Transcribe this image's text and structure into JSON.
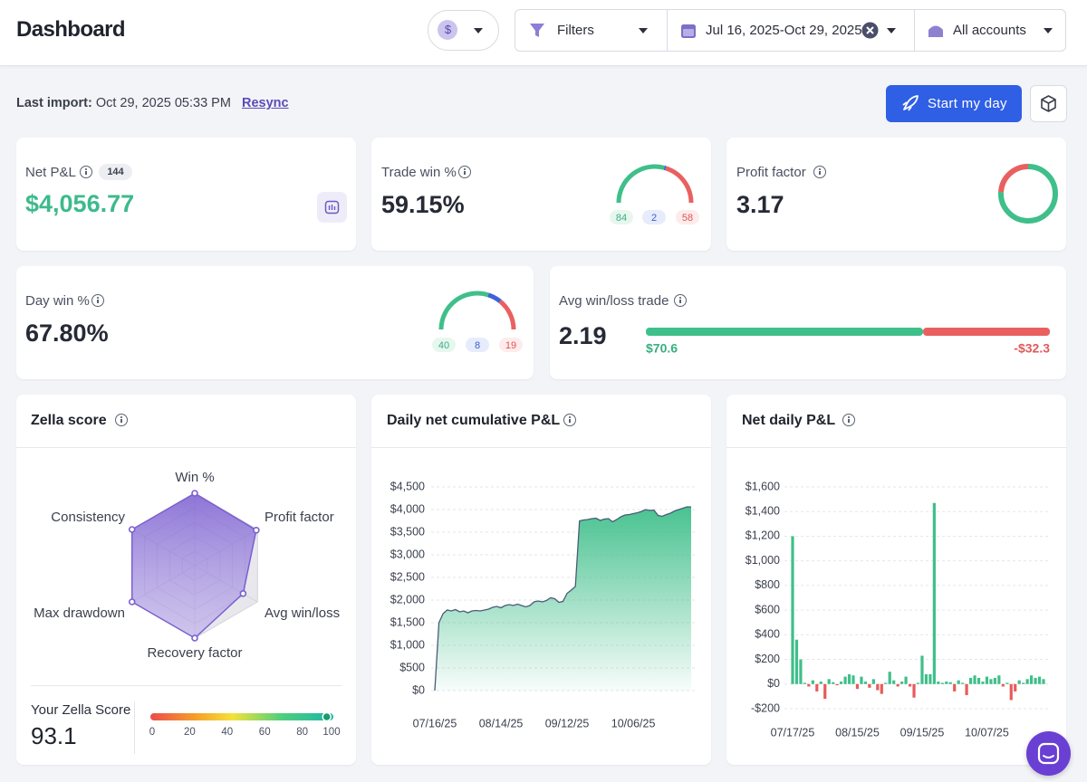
{
  "header": {
    "title": "Dashboard",
    "currency": "$",
    "filters": "Filters",
    "date_range": "Jul 16, 2025-Oct 29, 2025",
    "accounts": "All accounts"
  },
  "import": {
    "label": "Last import:",
    "time": "Oct 29, 2025 05:33 PM",
    "resync": "Resync",
    "start_button": "Start my day"
  },
  "cards": {
    "net_pnl": {
      "label": "Net P&L",
      "trade_count": 144,
      "value": "$4,056.77"
    },
    "trade_win": {
      "label": "Trade win %",
      "value": "59.15%",
      "wins": 84,
      "breakeven": 2,
      "losses": 58
    },
    "profit_factor": {
      "label": "Profit factor",
      "value": 3.17
    },
    "day_win": {
      "label": "Day win %",
      "value": "67.80%",
      "wins": 40,
      "breakeven": 8,
      "losses": 19
    },
    "avg_win_loss": {
      "label": "Avg win/loss trade",
      "value": 2.19,
      "avg_win": {
        "value": 70.6,
        "label": "$70.6"
      },
      "avg_loss": {
        "value": -32.3,
        "label": "-$32.3"
      }
    }
  },
  "zella_score": {
    "label": "Your Zella Score",
    "value": 93.1,
    "ticks": [
      0,
      20,
      40,
      60,
      80,
      100
    ]
  },
  "chart_data": [
    {
      "type": "radar",
      "title": "Zella score",
      "categories": [
        "Win %",
        "Profit factor",
        "Avg win/loss",
        "Recovery factor",
        "Max drawdown",
        "Consistency"
      ],
      "values": [
        100,
        98,
        77,
        100,
        100,
        100
      ],
      "rlim": [
        0,
        100
      ],
      "rticks": [
        20,
        40,
        60,
        80,
        100
      ],
      "color": "#7b5fd1"
    },
    {
      "type": "area",
      "title": "Daily net cumulative P&L",
      "categories": [
        "07/16/25",
        null,
        null,
        null,
        null,
        null,
        null,
        null,
        null,
        null,
        null,
        null,
        null,
        null,
        null,
        null,
        "08/14/25",
        null,
        null,
        null,
        null,
        null,
        null,
        null,
        null,
        null,
        null,
        null,
        null,
        null,
        null,
        null,
        "09/12/25",
        null,
        null,
        null,
        null,
        null,
        null,
        null,
        null,
        null,
        null,
        null,
        null,
        null,
        null,
        null,
        "10/06/25",
        null,
        null,
        null,
        null,
        null,
        null,
        null,
        null,
        null,
        null,
        null,
        null,
        null,
        null
      ],
      "values": [
        0,
        1500,
        1700,
        1780,
        1760,
        1790,
        1740,
        1760,
        1720,
        1760,
        1770,
        1760,
        1780,
        1800,
        1840,
        1860,
        1830,
        1880,
        1900,
        1880,
        1910,
        1880,
        1850,
        1880,
        1960,
        1980,
        1960,
        1990,
        2050,
        2030,
        1950,
        1970,
        2150,
        2220,
        2300,
        3750,
        3770,
        3780,
        3800,
        3810,
        3760,
        3790,
        3800,
        3730,
        3780,
        3840,
        3880,
        3890,
        3910,
        3930,
        3960,
        4000,
        3980,
        3990,
        3870,
        3850,
        3890,
        3920,
        3970,
        4000,
        4030,
        4060,
        4057
      ],
      "ylim": [
        0,
        4500
      ],
      "yticks": [
        {
          "value": 0,
          "label": "$0"
        },
        {
          "value": 500,
          "label": "$500"
        },
        {
          "value": 1000,
          "label": "$1,000"
        },
        {
          "value": 1500,
          "label": "$1,500"
        },
        {
          "value": 2000,
          "label": "$2,000"
        },
        {
          "value": 2500,
          "label": "$2,500"
        },
        {
          "value": 3000,
          "label": "$3,000"
        },
        {
          "value": 3500,
          "label": "$3,500"
        },
        {
          "value": 4000,
          "label": "$4,000"
        },
        {
          "value": 4500,
          "label": "$4,500"
        }
      ],
      "color": "#3fbf8a",
      "grid": true
    },
    {
      "type": "bar",
      "title": "Net daily P&L",
      "categories": [
        "07/17/25",
        null,
        null,
        null,
        null,
        null,
        null,
        null,
        null,
        null,
        null,
        null,
        null,
        null,
        null,
        null,
        "08/15/25",
        null,
        null,
        null,
        null,
        null,
        null,
        null,
        null,
        null,
        null,
        null,
        null,
        null,
        null,
        null,
        "09/15/25",
        null,
        null,
        null,
        null,
        null,
        null,
        null,
        null,
        null,
        null,
        null,
        null,
        null,
        null,
        null,
        "10/07/25",
        null,
        null,
        null,
        null,
        null,
        null,
        null,
        null,
        null,
        null,
        null,
        null,
        null,
        null
      ],
      "values": [
        1200,
        360,
        200,
        10,
        -20,
        30,
        -60,
        20,
        -120,
        40,
        15,
        -10,
        20,
        60,
        80,
        70,
        -40,
        60,
        20,
        -30,
        40,
        -50,
        -80,
        10,
        100,
        30,
        -20,
        20,
        60,
        -20,
        -110,
        10,
        230,
        80,
        80,
        1470,
        20,
        10,
        20,
        15,
        -60,
        30,
        10,
        -90,
        50,
        70,
        50,
        20,
        60,
        40,
        50,
        70,
        -20,
        10,
        -130,
        -60,
        30,
        10,
        40,
        70,
        50,
        60,
        40
      ],
      "ylim": [
        -200,
        1600
      ],
      "yticks": [
        {
          "value": -200,
          "label": "-$200"
        },
        {
          "value": 0,
          "label": "$0"
        },
        {
          "value": 200,
          "label": "$200"
        },
        {
          "value": 400,
          "label": "$400"
        },
        {
          "value": 600,
          "label": "$600"
        },
        {
          "value": 800,
          "label": "$800"
        },
        {
          "value": 1000,
          "label": "$1,000"
        },
        {
          "value": 1200,
          "label": "$1,200"
        },
        {
          "value": 1400,
          "label": "$1,400"
        },
        {
          "value": 1600,
          "label": "$1,600"
        }
      ],
      "colors": {
        "positive": "#3fbf8a",
        "negative": "#e85b5b"
      },
      "grid": true
    }
  ]
}
